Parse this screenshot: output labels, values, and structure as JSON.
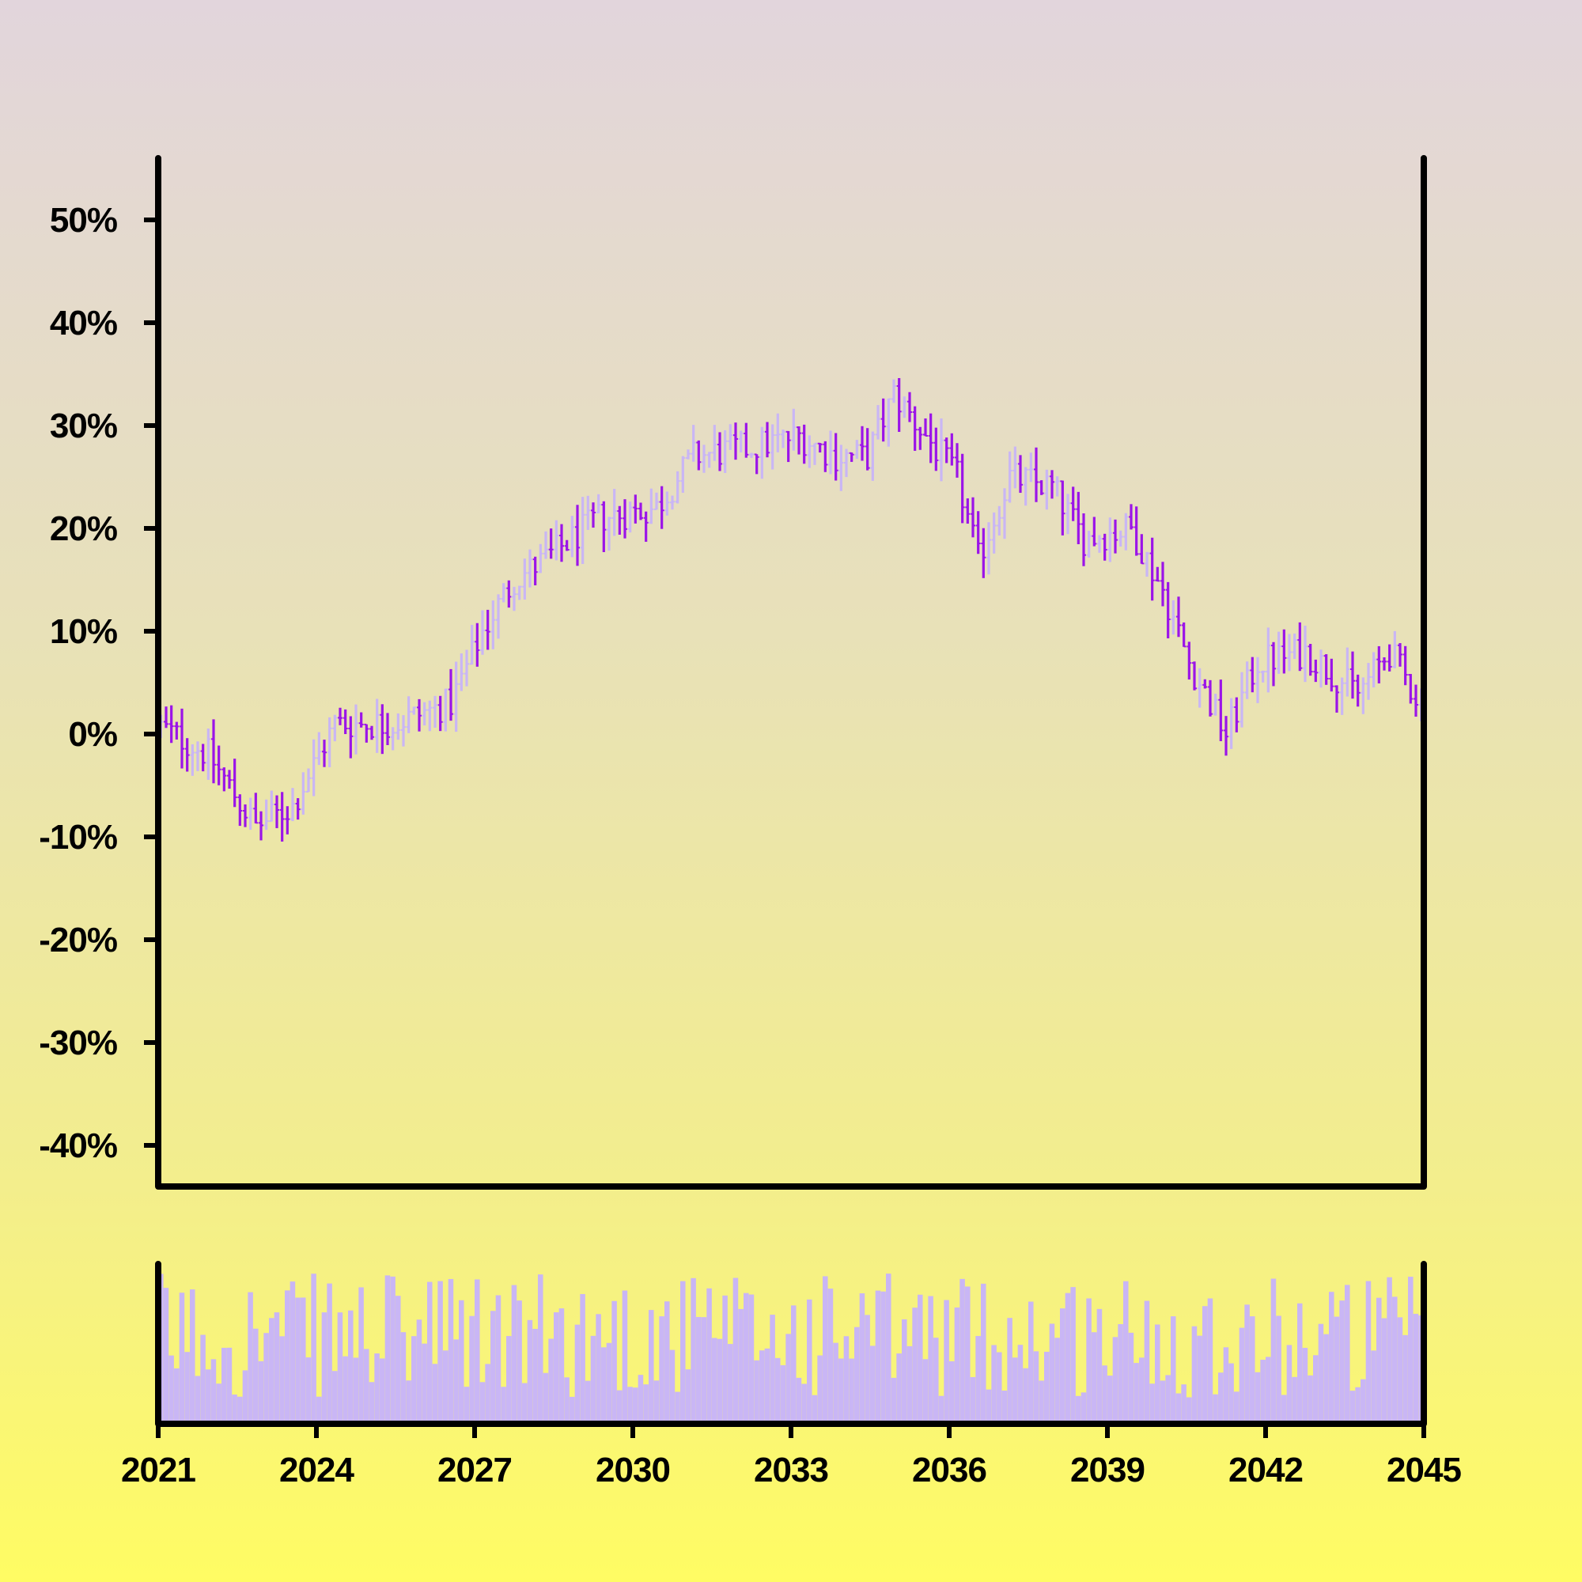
{
  "chart_data": {
    "type": "ohlc",
    "title": "",
    "xlabel": "",
    "ylabel": "",
    "x_ticks": [
      "2021",
      "2024",
      "2027",
      "2030",
      "2033",
      "2036",
      "2039",
      "2042",
      "2045"
    ],
    "y_ticks": [
      "-40%",
      "-30%",
      "-20%",
      "-10%",
      "0%",
      "10%",
      "20%",
      "30%",
      "40%",
      "50%"
    ],
    "x_range": [
      2021,
      2045
    ],
    "y_range_percent": [
      -44,
      56
    ],
    "panels": [
      "price",
      "volume"
    ],
    "grid": false,
    "colors": {
      "up": "#c9b6f5",
      "down": "#9b14e8",
      "volume": "#c9b6f5",
      "axis": "#000000"
    },
    "key_points": [
      {
        "x": 2021.0,
        "y": 1
      },
      {
        "x": 2022.0,
        "y": -2
      },
      {
        "x": 2022.9,
        "y": -9
      },
      {
        "x": 2023.6,
        "y": -7
      },
      {
        "x": 2024.4,
        "y": 1
      },
      {
        "x": 2025.5,
        "y": 1
      },
      {
        "x": 2026.6,
        "y": 3
      },
      {
        "x": 2027.2,
        "y": 10
      },
      {
        "x": 2027.8,
        "y": 15
      },
      {
        "x": 2028.4,
        "y": 17
      },
      {
        "x": 2029.4,
        "y": 21
      },
      {
        "x": 2030.5,
        "y": 22
      },
      {
        "x": 2031.2,
        "y": 27
      },
      {
        "x": 2032.4,
        "y": 28
      },
      {
        "x": 2033.2,
        "y": 29
      },
      {
        "x": 2033.9,
        "y": 27
      },
      {
        "x": 2034.5,
        "y": 27
      },
      {
        "x": 2035.0,
        "y": 33
      },
      {
        "x": 2035.6,
        "y": 29
      },
      {
        "x": 2036.2,
        "y": 25
      },
      {
        "x": 2036.6,
        "y": 17
      },
      {
        "x": 2037.2,
        "y": 25
      },
      {
        "x": 2038.0,
        "y": 24
      },
      {
        "x": 2038.6,
        "y": 19
      },
      {
        "x": 2039.5,
        "y": 20
      },
      {
        "x": 2040.1,
        "y": 14
      },
      {
        "x": 2040.6,
        "y": 7
      },
      {
        "x": 2041.3,
        "y": 0
      },
      {
        "x": 2041.9,
        "y": 7
      },
      {
        "x": 2042.8,
        "y": 8
      },
      {
        "x": 2043.8,
        "y": 4
      },
      {
        "x": 2044.4,
        "y": 8
      },
      {
        "x": 2045.0,
        "y": 3
      }
    ]
  }
}
